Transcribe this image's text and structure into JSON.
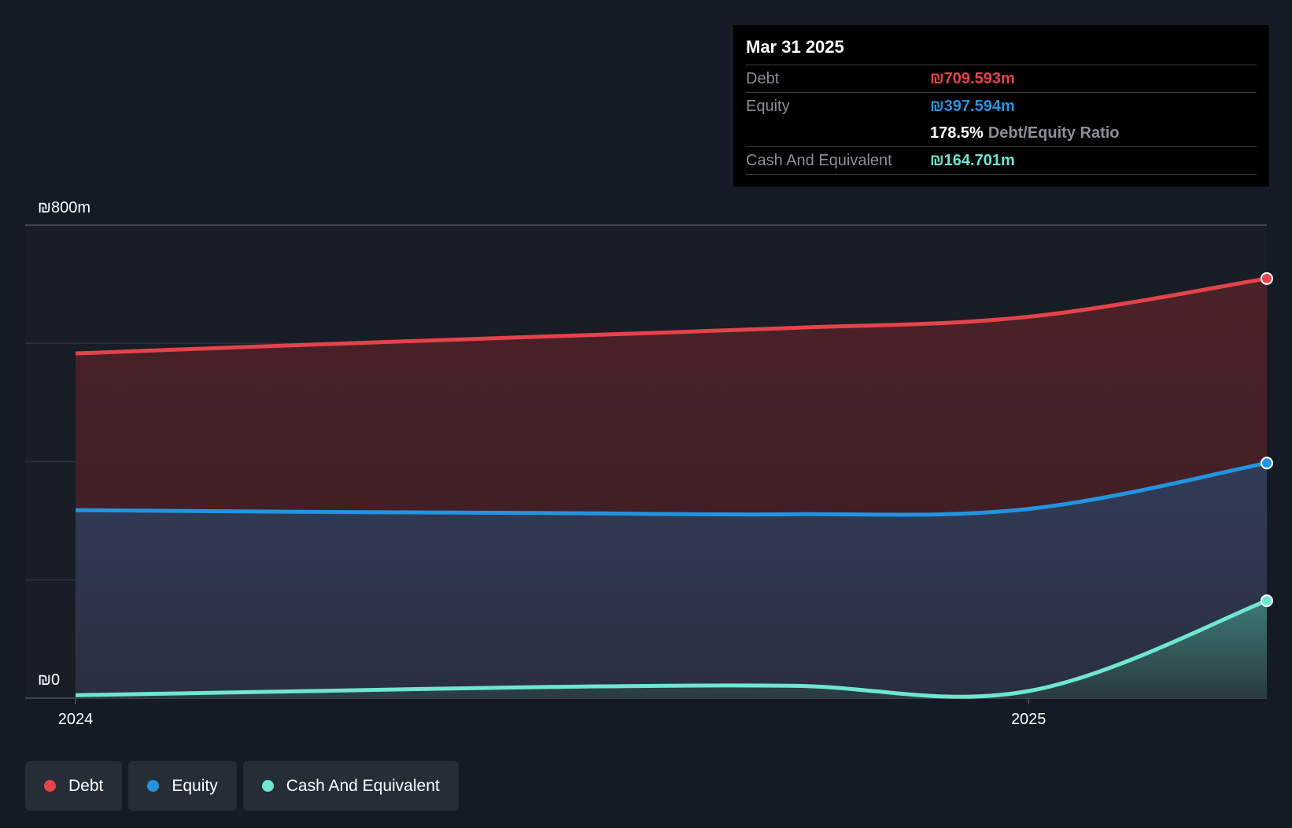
{
  "chart_data": {
    "type": "area",
    "title": "",
    "currency_symbol": "₪",
    "x_axis": {
      "ticks": [
        "2024",
        "2025"
      ]
    },
    "y_axis": {
      "min": 0,
      "max": 800,
      "unit": "m",
      "tick_labels": [
        "₪800m",
        "₪0"
      ]
    },
    "x": [
      2024.0,
      2024.25,
      2024.5,
      2024.75,
      2025.0,
      2025.25
    ],
    "series": [
      {
        "name": "Debt",
        "color": "#e5434b",
        "values": [
          583,
          598,
          612,
          626,
          645,
          709.593
        ]
      },
      {
        "name": "Equity",
        "color": "#2394e0",
        "values": [
          318,
          315,
          313,
          311,
          320,
          397.594
        ]
      },
      {
        "name": "Cash And Equivalent",
        "color": "#6ee6d2",
        "values": [
          5,
          12,
          19,
          21,
          12,
          164.701
        ]
      }
    ]
  },
  "tooltip": {
    "date": "Mar 31 2025",
    "debt_label": "Debt",
    "debt_value": "₪709.593m",
    "equity_label": "Equity",
    "equity_value": "₪397.594m",
    "ratio_value": "178.5%",
    "ratio_label": "Debt/Equity Ratio",
    "cash_label": "Cash And Equivalent",
    "cash_value": "₪164.701m"
  },
  "legend": [
    {
      "label": "Debt",
      "color": "#e5434b"
    },
    {
      "label": "Equity",
      "color": "#2394e0"
    },
    {
      "label": "Cash And Equivalent",
      "color": "#6ee6d2"
    }
  ]
}
